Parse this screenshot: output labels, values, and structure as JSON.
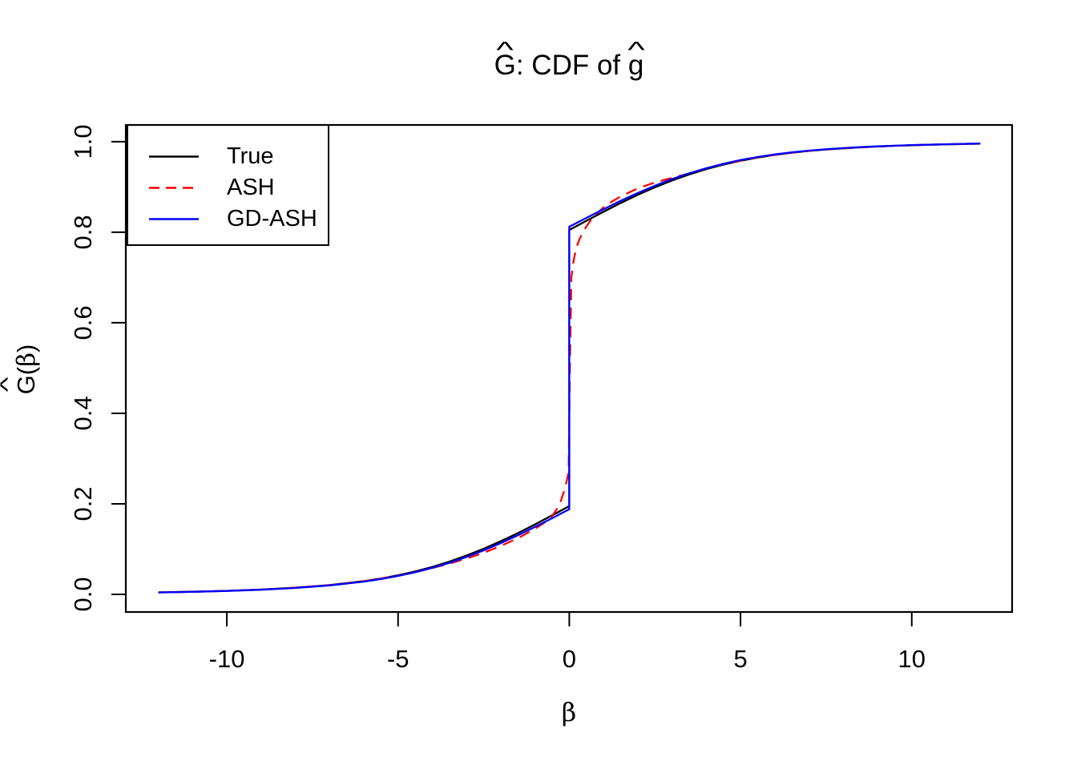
{
  "title": {
    "hat": "^",
    "part_G": "G",
    "separator": ": CDF of ",
    "part_g": "g",
    "full": "Ĝ: CDF of ĝ"
  },
  "axes": {
    "x": {
      "label": "β",
      "tick_values": [
        -10,
        -5,
        0,
        5,
        10
      ],
      "tick_labels": [
        "-10",
        "-5",
        "0",
        "5",
        "10"
      ]
    },
    "y": {
      "label_G": "G",
      "label_hat": "^",
      "label_open": "(",
      "label_beta": "β",
      "label_close": ")",
      "tick_values": [
        0,
        0.2,
        0.4,
        0.6,
        0.8,
        1
      ],
      "tick_labels": [
        "0.0",
        "0.2",
        "0.4",
        "0.6",
        "0.8",
        "1.0"
      ]
    }
  },
  "legend": {
    "items": [
      {
        "label": "True",
        "color": "#000000",
        "style": "solid"
      },
      {
        "label": "ASH",
        "color": "#FF0000",
        "style": "dashed"
      },
      {
        "label": "GD-ASH",
        "color": "#0000FF",
        "style": "solid"
      }
    ]
  },
  "chart_data": {
    "type": "line",
    "title": "Ĝ: CDF of ĝ",
    "xlabel": "β",
    "ylabel": "Ĝ(β)",
    "xlim": [
      -12.95,
      12.93
    ],
    "ylim": [
      -0.039,
      1.037
    ],
    "grid": false,
    "legend_position": "top-left",
    "x_ticks": [
      -10,
      -5,
      0,
      5,
      10
    ],
    "y_ticks": [
      0,
      0.2,
      0.4,
      0.6,
      0.8,
      1
    ],
    "series": [
      {
        "name": "True",
        "color": "#000000",
        "line_style": "solid",
        "points": [
          [
            -12,
            0.0043
          ],
          [
            -11,
            0.0058
          ],
          [
            -10,
            0.0078
          ],
          [
            -9,
            0.0106
          ],
          [
            -8,
            0.0146
          ],
          [
            -7,
            0.0204
          ],
          [
            -6,
            0.0292
          ],
          [
            -5.5,
            0.035
          ],
          [
            -5,
            0.0422
          ],
          [
            -4.5,
            0.0506
          ],
          [
            -4,
            0.0606
          ],
          [
            -3.5,
            0.0723
          ],
          [
            -3,
            0.0857
          ],
          [
            -2.5,
            0.1007
          ],
          [
            -2,
            0.1174
          ],
          [
            -1.5,
            0.1354
          ],
          [
            -1,
            0.1546
          ],
          [
            -0.5,
            0.1746
          ],
          [
            0,
            0.195
          ],
          [
            0,
            0.805
          ],
          [
            0.5,
            0.8254
          ],
          [
            1,
            0.8454
          ],
          [
            1.5,
            0.8646
          ],
          [
            2,
            0.8826
          ],
          [
            2.5,
            0.8993
          ],
          [
            3,
            0.9143
          ],
          [
            3.5,
            0.9277
          ],
          [
            4,
            0.9394
          ],
          [
            4.5,
            0.9494
          ],
          [
            5,
            0.9578
          ],
          [
            5.5,
            0.965
          ],
          [
            6,
            0.9708
          ],
          [
            6.5,
            0.9757
          ],
          [
            7,
            0.9796
          ],
          [
            7.5,
            0.9828
          ],
          [
            8,
            0.9854
          ],
          [
            8.5,
            0.9876
          ],
          [
            9,
            0.9894
          ],
          [
            9.5,
            0.9909
          ],
          [
            10,
            0.9922
          ],
          [
            10.5,
            0.9933
          ],
          [
            11,
            0.9942
          ],
          [
            11.5,
            0.995
          ],
          [
            12,
            0.9957
          ]
        ]
      },
      {
        "name": "ASH",
        "color": "#FF0000",
        "line_style": "dashed",
        "points": [
          [
            -12,
            0.0043
          ],
          [
            -11,
            0.0058
          ],
          [
            -10,
            0.0078
          ],
          [
            -9,
            0.0106
          ],
          [
            -8,
            0.0146
          ],
          [
            -7,
            0.0204
          ],
          [
            -6,
            0.029
          ],
          [
            -5,
            0.041
          ],
          [
            -4,
            0.058
          ],
          [
            -3.5,
            0.068
          ],
          [
            -3,
            0.079
          ],
          [
            -2.5,
            0.092
          ],
          [
            -2,
            0.107
          ],
          [
            -1.5,
            0.124
          ],
          [
            -1,
            0.145
          ],
          [
            -0.75,
            0.157
          ],
          [
            -0.5,
            0.173
          ],
          [
            -0.35,
            0.19
          ],
          [
            -0.25,
            0.206
          ],
          [
            -0.15,
            0.228
          ],
          [
            -0.07,
            0.252
          ],
          [
            -0.02,
            0.27
          ],
          [
            0.02,
            0.52
          ],
          [
            0.06,
            0.7
          ],
          [
            0.12,
            0.735
          ],
          [
            0.2,
            0.765
          ],
          [
            0.3,
            0.785
          ],
          [
            0.4,
            0.8
          ],
          [
            0.5,
            0.813
          ],
          [
            0.7,
            0.834
          ],
          [
            1,
            0.855
          ],
          [
            1.25,
            0.868
          ],
          [
            1.5,
            0.879
          ],
          [
            2,
            0.897
          ],
          [
            2.5,
            0.91
          ],
          [
            3,
            0.92
          ],
          [
            3.5,
            0.93
          ],
          [
            4,
            0.941
          ],
          [
            4.5,
            0.951
          ],
          [
            5,
            0.958
          ],
          [
            5.5,
            0.9655
          ],
          [
            6,
            0.971
          ],
          [
            6.5,
            0.9757
          ],
          [
            7,
            0.9797
          ],
          [
            7.5,
            0.9828
          ],
          [
            8,
            0.9854
          ],
          [
            9,
            0.9894
          ],
          [
            10,
            0.9922
          ],
          [
            11,
            0.9942
          ],
          [
            12,
            0.9956
          ]
        ]
      },
      {
        "name": "GD-ASH",
        "color": "#0000FF",
        "line_style": "solid",
        "points": [
          [
            -12,
            0.0041
          ],
          [
            -11,
            0.0056
          ],
          [
            -10,
            0.0075
          ],
          [
            -9,
            0.0102
          ],
          [
            -8,
            0.0141
          ],
          [
            -7,
            0.0197
          ],
          [
            -6,
            0.0281
          ],
          [
            -5.5,
            0.0337
          ],
          [
            -5,
            0.0407
          ],
          [
            -4.5,
            0.0488
          ],
          [
            -4,
            0.0585
          ],
          [
            -3.5,
            0.0697
          ],
          [
            -3,
            0.0826
          ],
          [
            -2.5,
            0.0971
          ],
          [
            -2,
            0.1132
          ],
          [
            -1.5,
            0.1306
          ],
          [
            -1,
            0.1491
          ],
          [
            -0.5,
            0.1683
          ],
          [
            0,
            0.188
          ],
          [
            0,
            0.812
          ],
          [
            0.5,
            0.8317
          ],
          [
            1,
            0.8509
          ],
          [
            1.5,
            0.8694
          ],
          [
            2,
            0.8868
          ],
          [
            2.5,
            0.9029
          ],
          [
            3,
            0.9174
          ],
          [
            3.5,
            0.9303
          ],
          [
            4,
            0.9415
          ],
          [
            4.5,
            0.9512
          ],
          [
            5,
            0.9594
          ],
          [
            5.5,
            0.9662
          ],
          [
            6,
            0.9719
          ],
          [
            6.5,
            0.9765
          ],
          [
            7,
            0.9803
          ],
          [
            7.5,
            0.9834
          ],
          [
            8,
            0.9859
          ],
          [
            8.5,
            0.988
          ],
          [
            9,
            0.9898
          ],
          [
            9.5,
            0.9912
          ],
          [
            10,
            0.9925
          ],
          [
            10.5,
            0.9935
          ],
          [
            11,
            0.9944
          ],
          [
            11.5,
            0.9952
          ],
          [
            12,
            0.9959
          ]
        ]
      }
    ]
  }
}
